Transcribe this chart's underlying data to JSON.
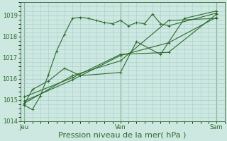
{
  "bg_color": "#cce8e0",
  "grid_color": "#a8cccc",
  "line_color": "#2d6a2d",
  "marker_color": "#2d6a2d",
  "xlabel": "Pression niveau de la mer( hPa )",
  "xlabel_fontsize": 8,
  "ylim": [
    1014.0,
    1019.6
  ],
  "yticks": [
    1014,
    1015,
    1016,
    1017,
    1018,
    1019
  ],
  "xtick_labels": [
    "Jeu",
    "Ven",
    "Sam"
  ],
  "xtick_positions": [
    0,
    12,
    24
  ],
  "xlim": [
    -0.5,
    25.0
  ],
  "figsize": [
    3.2,
    2.0
  ],
  "dpi": 100,
  "series": [
    {
      "x": [
        0,
        1,
        2,
        3,
        4,
        5,
        6,
        7,
        8,
        9,
        10,
        11,
        12,
        13,
        14,
        15,
        16,
        17,
        18,
        24
      ],
      "y": [
        1014.75,
        1014.55,
        1015.2,
        1016.2,
        1017.3,
        1018.1,
        1018.85,
        1018.9,
        1018.85,
        1018.75,
        1018.65,
        1018.6,
        1018.75,
        1018.5,
        1018.65,
        1018.6,
        1019.05,
        1018.6,
        1018.5,
        1019.1
      ]
    },
    {
      "x": [
        0,
        1,
        3,
        5,
        7,
        12,
        14,
        17,
        20,
        24
      ],
      "y": [
        1014.8,
        1015.5,
        1015.9,
        1016.5,
        1016.15,
        1016.3,
        1017.75,
        1017.15,
        1018.85,
        1019.2
      ]
    },
    {
      "x": [
        0,
        6,
        12,
        18,
        24
      ],
      "y": [
        1014.85,
        1016.15,
        1016.85,
        1018.75,
        1018.85
      ]
    },
    {
      "x": [
        0,
        6,
        12,
        18,
        24
      ],
      "y": [
        1014.95,
        1015.95,
        1017.1,
        1017.7,
        1018.9
      ]
    },
    {
      "x": [
        0,
        6,
        12,
        18,
        24
      ],
      "y": [
        1015.15,
        1016.05,
        1017.15,
        1017.25,
        1019.05
      ]
    }
  ],
  "vlines": [
    0,
    12,
    24
  ]
}
